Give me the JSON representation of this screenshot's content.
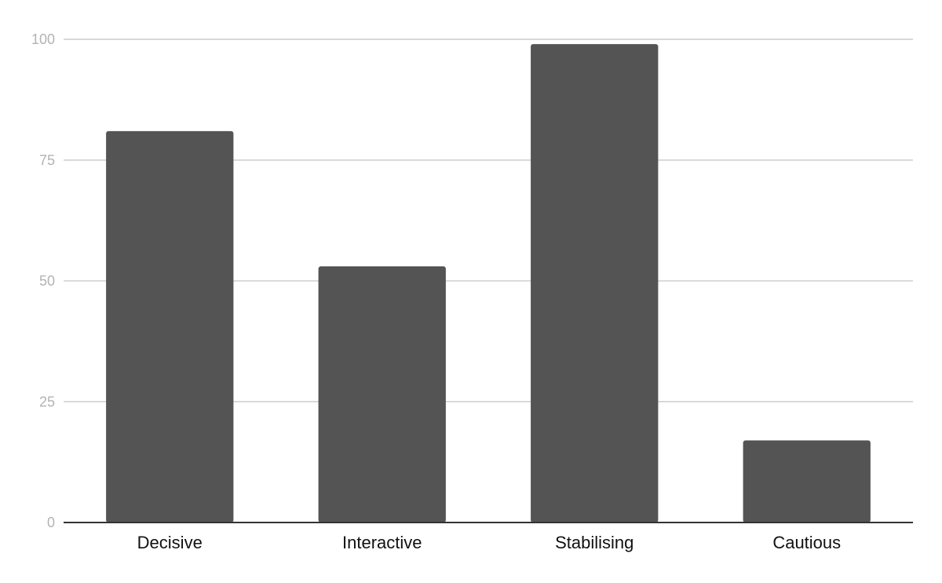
{
  "chart_data": {
    "type": "bar",
    "title": "",
    "xlabel": "",
    "ylabel": "",
    "categories": [
      "Decisive",
      "Interactive",
      "Stabilising",
      "Cautious"
    ],
    "values": [
      81,
      53,
      99,
      17
    ],
    "ylim": [
      0,
      100
    ],
    "yticks": [
      "0",
      "25",
      "50",
      "75",
      "100"
    ],
    "grid": true,
    "legend": "none",
    "colors": {
      "bar": "#545454",
      "grid": "#cccccc",
      "baseline": "#333333",
      "y_tick_text": "#b3b3b3",
      "x_tick_text": "#111111"
    }
  }
}
